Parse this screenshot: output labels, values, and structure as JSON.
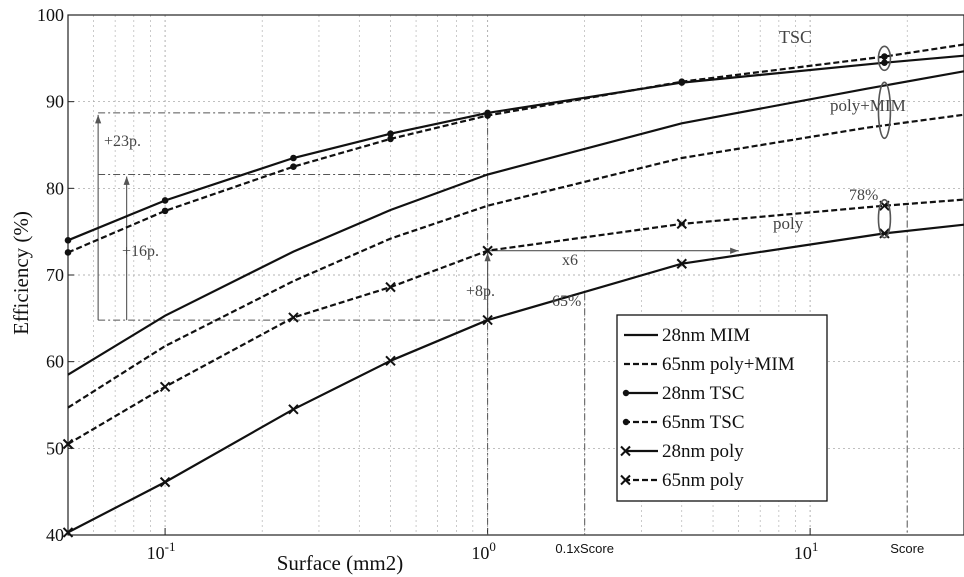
{
  "chart_data": {
    "type": "line",
    "title": "",
    "xlabel": "Surface (mm2)",
    "ylabel": "Efficiency (%)",
    "xscale": "log",
    "xlim": [
      0.05,
      30
    ],
    "ylim": [
      40,
      100
    ],
    "grid": true,
    "legend_position": "bottom-right",
    "y_ticks": [
      "40",
      "50",
      "60",
      "70",
      "80",
      "90",
      "100"
    ],
    "x_tick_values": [
      0.1,
      1,
      10
    ],
    "x_tick_bases": [
      "10",
      "10",
      "10"
    ],
    "x_tick_exps": [
      "-1",
      "0",
      "1"
    ],
    "x_extra_ticks": [
      {
        "x": 2,
        "label": "0.1xScore"
      },
      {
        "x": 20,
        "label": "Score"
      }
    ],
    "series": [
      {
        "name": "28nm MIM",
        "style": "solid",
        "marker": "none",
        "x": [
          0.05,
          0.1,
          0.25,
          0.5,
          1,
          4,
          15,
          30
        ],
        "y": [
          58.5,
          65.3,
          72.7,
          77.5,
          81.6,
          87.5,
          91.5,
          93.5
        ]
      },
      {
        "name": "65nm poly+MIM",
        "style": "dashed",
        "marker": "none",
        "x": [
          0.05,
          0.1,
          0.25,
          0.5,
          1,
          4,
          15,
          30
        ],
        "y": [
          54.7,
          61.8,
          69.3,
          74.2,
          78.0,
          83.5,
          87.0,
          88.5
        ]
      },
      {
        "name": "28nm TSC",
        "style": "solid",
        "marker": "dot",
        "x": [
          0.05,
          0.1,
          0.25,
          0.5,
          1,
          4,
          17,
          30
        ],
        "y": [
          74.0,
          78.6,
          83.5,
          86.3,
          88.7,
          92.2,
          94.5,
          95.3
        ]
      },
      {
        "name": "65nm TSC",
        "style": "dashed",
        "marker": "dot",
        "x": [
          0.05,
          0.1,
          0.25,
          0.5,
          1,
          4,
          17,
          30
        ],
        "y": [
          72.6,
          77.4,
          82.5,
          85.7,
          88.4,
          92.3,
          95.2,
          96.6
        ]
      },
      {
        "name": "28nm poly",
        "style": "solid",
        "marker": "x",
        "x": [
          0.05,
          0.1,
          0.25,
          0.5,
          1,
          4,
          17,
          30
        ],
        "y": [
          40.3,
          46.1,
          54.5,
          60.1,
          64.8,
          71.3,
          74.8,
          75.8
        ]
      },
      {
        "name": "65nm poly",
        "style": "dashed",
        "marker": "x",
        "x": [
          0.05,
          0.1,
          0.25,
          0.5,
          1,
          4,
          17,
          30
        ],
        "y": [
          50.5,
          57.1,
          65.1,
          68.6,
          72.8,
          75.9,
          78.0,
          78.7
        ]
      }
    ],
    "annotations": {
      "tsc": "TSC",
      "poly_mim": "poly+MIM",
      "poly": "poly",
      "p78": "78%",
      "p65": "65%",
      "x6": "x6",
      "plus23": "+23p.",
      "plus16": "+16p.",
      "plus8": "+8p."
    }
  }
}
